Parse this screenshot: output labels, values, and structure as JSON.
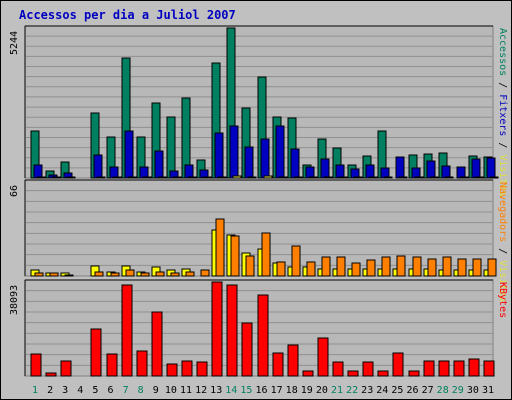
{
  "chart_data": {
    "type": "bar",
    "title": "Accessos per dia a Juliol 2007",
    "categories": [
      "1",
      "2",
      "3",
      "4",
      "5",
      "6",
      "7",
      "8",
      "9",
      "10",
      "11",
      "12",
      "13",
      "14",
      "15",
      "16",
      "17",
      "18",
      "19",
      "20",
      "21",
      "22",
      "23",
      "24",
      "25",
      "26",
      "27",
      "28",
      "29",
      "30",
      "31"
    ],
    "weekend_days": [
      "1",
      "7",
      "8",
      "14",
      "15",
      "21",
      "22",
      "28",
      "29"
    ],
    "panels": [
      {
        "ymax_label": "5244",
        "ymax": 5244,
        "right_label_parts": [
          {
            "text": "Accessos",
            "color": "#008060"
          },
          {
            "text": " / ",
            "color": "#000000"
          },
          {
            "text": "Fitxers",
            "color": "#0000c0"
          },
          {
            "text": " / ",
            "color": "#000000"
          },
          {
            "text": "Visites",
            "color": "#e0e040"
          }
        ],
        "series": [
          {
            "name": "Accessos",
            "color": "#008060",
            "values": [
              1650,
              260,
              560,
              0,
              2280,
              1420,
              4180,
              1430,
              2610,
              2150,
              2800,
              640,
              4010,
              5244,
              2440,
              3530,
              2140,
              2090,
              460,
              1380,
              1050,
              460,
              780,
              1640,
              0,
              810,
              840,
              860,
              0,
              780,
              720
            ]
          },
          {
            "name": "Fitxers",
            "color": "#0000c0",
            "values": [
              440,
              120,
              190,
              0,
              800,
              370,
              1640,
              370,
              940,
              260,
              470,
              280,
              1560,
              1830,
              1070,
              1350,
              1830,
              1030,
              370,
              680,
              440,
              310,
              450,
              360,
              740,
              360,
              600,
              420,
              380,
              680,
              690
            ]
          },
          {
            "name": "Visites",
            "color": "#e0e040",
            "values": [
              45,
              20,
              10,
              0,
              20,
              15,
              30,
              20,
              25,
              25,
              30,
              10,
              50,
              60,
              50,
              55,
              40,
              30,
              25,
              30,
              20,
              15,
              20,
              25,
              15,
              20,
              25,
              20,
              15,
              20,
              20
            ]
          }
        ]
      },
      {
        "ymax_label": "66",
        "ymax": 66,
        "right_label_parts": [
          {
            "text": "Navegadors",
            "color": "#ff8000"
          },
          {
            "text": " / ",
            "color": "#000000"
          },
          {
            "text": "Visites",
            "color": "#e0e040"
          }
        ],
        "series": [
          {
            "name": "Visites",
            "color": "#ffff00",
            "values": [
              4,
              2,
              2,
              0,
              7,
              3,
              7,
              3,
              6,
              4,
              5,
              0,
              32,
              29,
              16,
              19,
              9,
              6,
              6,
              5,
              5,
              5,
              5,
              5,
              5,
              5,
              5,
              4,
              4,
              4,
              4
            ]
          },
          {
            "name": "Navegadors",
            "color": "#ff8000",
            "values": [
              2,
              2,
              1,
              0,
              3,
              2,
              4,
              2,
              3,
              2,
              3,
              4,
              40,
              28,
              14,
              30,
              10,
              21,
              10,
              13,
              13,
              9,
              11,
              13,
              14,
              13,
              12,
              13,
              12,
              12,
              12
            ]
          }
        ]
      },
      {
        "ymax_label": "38093",
        "ymax": 38093,
        "right_label_parts": [
          {
            "text": "KBytes",
            "color": "#ff0000"
          }
        ],
        "series": [
          {
            "name": "KBytes",
            "color": "#ff0000",
            "values": [
              9000,
              1200,
              5900,
              0,
              19000,
              8900,
              37000,
              10100,
              25800,
              4800,
              6000,
              5800,
              38093,
              36800,
              21300,
              33000,
              9400,
              12400,
              2000,
              15200,
              5800,
              2000,
              5800,
              2000,
              9400,
              2000,
              6000,
              6000,
              6000,
              6800,
              6000
            ]
          }
        ]
      }
    ]
  }
}
